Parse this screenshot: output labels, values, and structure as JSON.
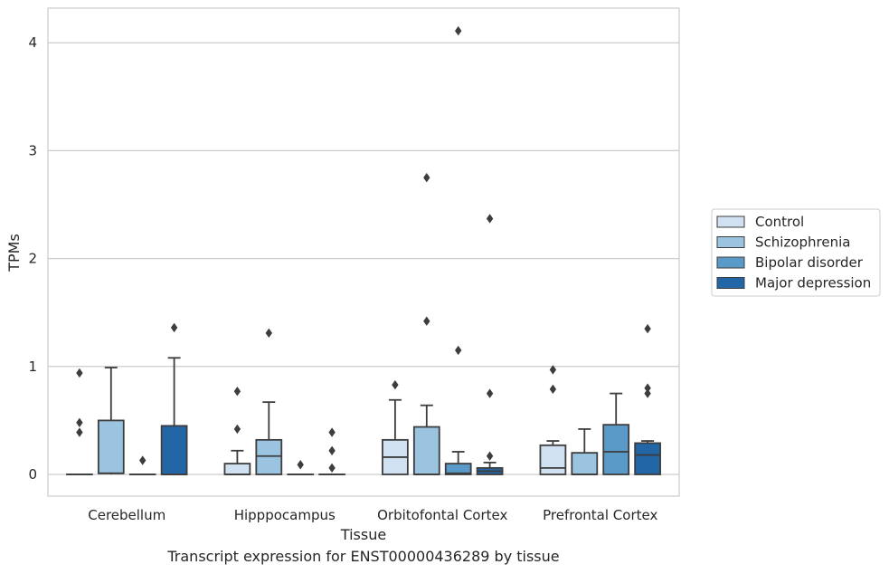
{
  "chart_data": {
    "type": "box",
    "title": "",
    "caption": "Transcript expression for ENST00000436289 by tissue",
    "xlabel": "Tissue",
    "ylabel": "TPMs",
    "ylim": [
      -0.2,
      4.32
    ],
    "yticks": [
      "0",
      "1",
      "2",
      "3",
      "4"
    ],
    "categories": [
      "Cerebellum",
      "Hipppocampus",
      "Orbitofontal Cortex",
      "Prefrontal Cortex"
    ],
    "grid": "horizontal",
    "legend_position": "right",
    "series": [
      {
        "name": "Control",
        "color": "#d0e1f2",
        "boxes": [
          {
            "q1": 0,
            "median": 0,
            "q3": 0,
            "whislo": 0,
            "whishi": 0,
            "fliers": [
              0.94,
              0.48,
              0.39
            ]
          },
          {
            "q1": 0,
            "median": 0,
            "q3": 0.1,
            "whislo": 0,
            "whishi": 0.22,
            "fliers": [
              0.77,
              0.42
            ]
          },
          {
            "q1": 0,
            "median": 0.16,
            "q3": 0.32,
            "whislo": 0,
            "whishi": 0.69,
            "fliers": [
              0.83
            ]
          },
          {
            "q1": 0,
            "median": 0.06,
            "q3": 0.27,
            "whislo": 0,
            "whishi": 0.31,
            "fliers": [
              0.97,
              0.79
            ]
          }
        ]
      },
      {
        "name": "Schizophrenia",
        "color": "#9ac4e0",
        "boxes": [
          {
            "q1": 0.01,
            "median": 0.01,
            "q3": 0.5,
            "whislo": 0,
            "whishi": 0.99,
            "fliers": []
          },
          {
            "q1": 0,
            "median": 0.17,
            "q3": 0.32,
            "whislo": 0,
            "whishi": 0.67,
            "fliers": [
              1.31
            ]
          },
          {
            "q1": 0,
            "median": 0,
            "q3": 0.44,
            "whislo": 0,
            "whishi": 0.64,
            "fliers": [
              2.75,
              1.42
            ]
          },
          {
            "q1": 0,
            "median": 0,
            "q3": 0.2,
            "whislo": 0,
            "whishi": 0.42,
            "fliers": []
          }
        ]
      },
      {
        "name": "Bipolar disorder",
        "color": "#5a9ac8",
        "boxes": [
          {
            "q1": 0,
            "median": 0,
            "q3": 0,
            "whislo": 0,
            "whishi": 0,
            "fliers": [
              0.13
            ]
          },
          {
            "q1": 0,
            "median": 0,
            "q3": 0,
            "whislo": 0,
            "whishi": 0,
            "fliers": [
              0.09
            ]
          },
          {
            "q1": 0,
            "median": 0.01,
            "q3": 0.1,
            "whislo": 0,
            "whishi": 0.21,
            "fliers": [
              4.11,
              1.15
            ]
          },
          {
            "q1": 0,
            "median": 0.21,
            "q3": 0.46,
            "whislo": 0,
            "whishi": 0.75,
            "fliers": []
          }
        ]
      },
      {
        "name": "Major depression",
        "color": "#2366a8",
        "boxes": [
          {
            "q1": 0,
            "median": 0,
            "q3": 0.45,
            "whislo": 0,
            "whishi": 1.08,
            "fliers": [
              1.36
            ]
          },
          {
            "q1": 0,
            "median": 0,
            "q3": 0,
            "whislo": 0,
            "whishi": 0,
            "fliers": [
              0.39,
              0.22,
              0.06
            ]
          },
          {
            "q1": 0,
            "median": 0.03,
            "q3": 0.06,
            "whislo": 0,
            "whishi": 0.11,
            "fliers": [
              2.37,
              0.75,
              0.17
            ]
          },
          {
            "q1": 0,
            "median": 0.18,
            "q3": 0.29,
            "whislo": 0,
            "whishi": 0.31,
            "fliers": [
              1.35,
              0.8,
              0.75
            ]
          }
        ]
      }
    ]
  }
}
